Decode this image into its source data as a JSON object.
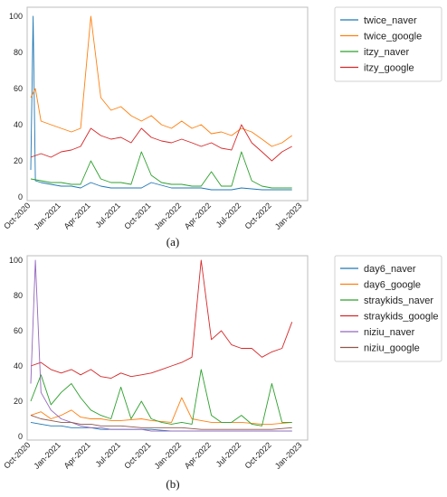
{
  "chart_data": [
    {
      "type": "line",
      "caption": "(a)",
      "x_ticks": [
        "Oct-2020",
        "Jan-2021",
        "Apr-2021",
        "Jul-2021",
        "Oct-2021",
        "Jan-2022",
        "Apr-2022",
        "Jul-2022",
        "Oct-2022",
        "Jan-2023"
      ],
      "y_ticks": [
        0,
        20,
        40,
        60,
        80,
        100
      ],
      "ylim": [
        0,
        100
      ],
      "xlim": [
        "2020-10-01",
        "2023-01-01"
      ],
      "grid": false,
      "legend_position": "outside-right",
      "series": [
        {
          "name": "twice_naver",
          "color": "#1f77b4",
          "x": [
            "2020-10-01",
            "2020-10-08",
            "2020-10-15",
            "2020-11-01",
            "2020-12-01",
            "2021-01-01",
            "2021-02-01",
            "2021-03-01",
            "2021-04-01",
            "2021-05-01",
            "2021-06-01",
            "2021-07-01",
            "2021-09-01",
            "2021-10-01",
            "2021-12-01",
            "2022-01-01",
            "2022-03-01",
            "2022-04-01",
            "2022-06-01",
            "2022-07-01",
            "2022-09-01",
            "2022-10-01",
            "2022-12-01"
          ],
          "values": [
            15,
            100,
            9,
            8,
            7,
            6,
            6,
            5,
            8,
            6,
            5,
            5,
            5,
            8,
            5,
            5,
            5,
            4,
            4,
            5,
            4,
            4,
            4
          ]
        },
        {
          "name": "twice_google",
          "color": "#ff7f0e",
          "x": [
            "2020-10-01",
            "2020-10-15",
            "2020-11-01",
            "2020-12-01",
            "2021-01-01",
            "2021-02-01",
            "2021-03-01",
            "2021-04-01",
            "2021-05-01",
            "2021-06-01",
            "2021-07-01",
            "2021-08-01",
            "2021-09-01",
            "2021-10-01",
            "2021-11-01",
            "2021-12-01",
            "2022-01-01",
            "2022-02-01",
            "2022-03-01",
            "2022-04-01",
            "2022-05-01",
            "2022-06-01",
            "2022-07-01",
            "2022-08-01",
            "2022-09-01",
            "2022-10-01",
            "2022-11-01",
            "2022-12-01"
          ],
          "values": [
            55,
            60,
            42,
            40,
            38,
            36,
            38,
            100,
            55,
            48,
            50,
            45,
            42,
            45,
            40,
            38,
            42,
            38,
            40,
            35,
            36,
            34,
            38,
            36,
            32,
            28,
            30,
            34
          ]
        },
        {
          "name": "itzy_naver",
          "color": "#2ca02c",
          "x": [
            "2020-10-01",
            "2020-11-01",
            "2020-12-01",
            "2021-01-01",
            "2021-02-01",
            "2021-03-01",
            "2021-04-01",
            "2021-05-01",
            "2021-06-01",
            "2021-07-01",
            "2021-08-01",
            "2021-09-01",
            "2021-10-01",
            "2021-11-01",
            "2021-12-01",
            "2022-01-01",
            "2022-02-01",
            "2022-03-01",
            "2022-04-01",
            "2022-05-01",
            "2022-06-01",
            "2022-07-01",
            "2022-08-01",
            "2022-09-01",
            "2022-10-01",
            "2022-11-01",
            "2022-12-01"
          ],
          "values": [
            10,
            9,
            8,
            8,
            7,
            7,
            20,
            10,
            8,
            8,
            7,
            25,
            12,
            8,
            7,
            7,
            6,
            6,
            14,
            6,
            6,
            25,
            9,
            6,
            5,
            5,
            5
          ]
        },
        {
          "name": "itzy_google",
          "color": "#d62728",
          "x": [
            "2020-10-01",
            "2020-11-01",
            "2020-12-01",
            "2021-01-01",
            "2021-02-01",
            "2021-03-01",
            "2021-04-01",
            "2021-05-01",
            "2021-06-01",
            "2021-07-01",
            "2021-08-01",
            "2021-09-01",
            "2021-10-01",
            "2021-11-01",
            "2021-12-01",
            "2022-01-01",
            "2022-02-01",
            "2022-03-01",
            "2022-04-01",
            "2022-05-01",
            "2022-06-01",
            "2022-07-01",
            "2022-08-01",
            "2022-09-01",
            "2022-10-01",
            "2022-11-01",
            "2022-12-01"
          ],
          "values": [
            22,
            24,
            22,
            25,
            26,
            28,
            38,
            34,
            32,
            33,
            30,
            38,
            33,
            31,
            30,
            32,
            30,
            28,
            30,
            27,
            26,
            40,
            30,
            25,
            20,
            25,
            28
          ]
        }
      ]
    },
    {
      "type": "line",
      "caption": "(b)",
      "x_ticks": [
        "Oct-2020",
        "Jan-2021",
        "Apr-2021",
        "Jul-2021",
        "Oct-2021",
        "Jan-2022",
        "Apr-2022",
        "Jul-2022",
        "Oct-2022",
        "Jan-2023"
      ],
      "y_ticks": [
        0,
        20,
        40,
        60,
        80,
        100
      ],
      "ylim": [
        0,
        100
      ],
      "xlim": [
        "2020-10-01",
        "2023-01-01"
      ],
      "grid": false,
      "legend_position": "outside-right",
      "series": [
        {
          "name": "day6_naver",
          "color": "#1f77b4",
          "x": [
            "2020-10-01",
            "2020-11-01",
            "2020-12-01",
            "2021-01-01",
            "2021-02-01",
            "2021-03-01",
            "2021-04-01",
            "2021-05-01",
            "2021-06-01",
            "2021-07-01",
            "2021-09-01",
            "2021-10-01",
            "2021-12-01",
            "2022-01-01",
            "2022-03-01",
            "2022-04-01",
            "2022-06-01",
            "2022-07-01",
            "2022-09-01",
            "2022-10-01",
            "2022-12-01"
          ],
          "values": [
            8,
            7,
            6,
            6,
            5,
            5,
            5,
            4,
            4,
            4,
            4,
            4,
            3,
            3,
            3,
            3,
            3,
            3,
            3,
            3,
            3
          ]
        },
        {
          "name": "day6_google",
          "color": "#ff7f0e",
          "x": [
            "2020-10-01",
            "2020-11-01",
            "2020-12-01",
            "2021-01-01",
            "2021-02-01",
            "2021-03-01",
            "2021-04-01",
            "2021-05-01",
            "2021-06-01",
            "2021-07-01",
            "2021-09-01",
            "2021-10-01",
            "2021-12-01",
            "2022-01-01",
            "2022-02-01",
            "2022-03-01",
            "2022-04-01",
            "2022-06-01",
            "2022-07-01",
            "2022-09-01",
            "2022-10-01",
            "2022-12-01"
          ],
          "values": [
            12,
            14,
            10,
            12,
            15,
            11,
            10,
            10,
            9,
            9,
            10,
            9,
            8,
            22,
            10,
            9,
            8,
            8,
            8,
            7,
            7,
            8
          ]
        },
        {
          "name": "straykids_naver",
          "color": "#2ca02c",
          "x": [
            "2020-10-01",
            "2020-11-01",
            "2020-12-01",
            "2021-01-01",
            "2021-02-01",
            "2021-03-01",
            "2021-04-01",
            "2021-05-01",
            "2021-06-01",
            "2021-07-01",
            "2021-08-01",
            "2021-09-01",
            "2021-10-01",
            "2021-11-01",
            "2021-12-01",
            "2022-01-01",
            "2022-02-01",
            "2022-03-01",
            "2022-04-01",
            "2022-05-01",
            "2022-06-01",
            "2022-07-01",
            "2022-08-01",
            "2022-09-01",
            "2022-10-01",
            "2022-11-01",
            "2022-12-01"
          ],
          "values": [
            20,
            35,
            18,
            25,
            30,
            22,
            15,
            12,
            10,
            28,
            10,
            20,
            10,
            8,
            7,
            8,
            7,
            38,
            12,
            8,
            8,
            12,
            7,
            6,
            30,
            8,
            8
          ]
        },
        {
          "name": "straykids_google",
          "color": "#d62728",
          "x": [
            "2020-10-01",
            "2020-11-01",
            "2020-12-01",
            "2021-01-01",
            "2021-02-01",
            "2021-03-01",
            "2021-04-01",
            "2021-05-01",
            "2021-06-01",
            "2021-07-01",
            "2021-08-01",
            "2021-09-01",
            "2021-10-01",
            "2021-11-01",
            "2021-12-01",
            "2022-01-01",
            "2022-02-01",
            "2022-03-01",
            "2022-04-01",
            "2022-05-01",
            "2022-06-01",
            "2022-07-01",
            "2022-08-01",
            "2022-09-01",
            "2022-10-01",
            "2022-11-01",
            "2022-12-01"
          ],
          "values": [
            40,
            42,
            38,
            36,
            38,
            35,
            38,
            34,
            33,
            36,
            34,
            35,
            36,
            38,
            40,
            42,
            45,
            100,
            55,
            60,
            52,
            50,
            50,
            45,
            48,
            50,
            65
          ]
        },
        {
          "name": "niziu_naver",
          "color": "#9467bd",
          "x": [
            "2020-10-01",
            "2020-10-15",
            "2020-11-01",
            "2020-12-01",
            "2021-01-01",
            "2021-02-01",
            "2021-03-01",
            "2021-04-01",
            "2021-05-01",
            "2021-06-01",
            "2021-07-01",
            "2021-09-01",
            "2021-10-01",
            "2021-12-01",
            "2022-01-01",
            "2022-03-01",
            "2022-04-01",
            "2022-06-01",
            "2022-07-01",
            "2022-09-01",
            "2022-10-01",
            "2022-12-01"
          ],
          "values": [
            30,
            100,
            25,
            15,
            10,
            8,
            6,
            5,
            5,
            4,
            4,
            4,
            3,
            3,
            3,
            3,
            3,
            3,
            3,
            3,
            3,
            3
          ]
        },
        {
          "name": "niziu_google",
          "color": "#8c564b",
          "x": [
            "2020-10-01",
            "2020-11-01",
            "2020-12-01",
            "2021-01-01",
            "2021-02-01",
            "2021-03-01",
            "2021-04-01",
            "2021-05-01",
            "2021-06-01",
            "2021-07-01",
            "2021-09-01",
            "2021-10-01",
            "2021-12-01",
            "2022-01-01",
            "2022-03-01",
            "2022-04-01",
            "2022-06-01",
            "2022-07-01",
            "2022-09-01",
            "2022-10-01",
            "2022-12-01"
          ],
          "values": [
            12,
            10,
            9,
            8,
            8,
            7,
            7,
            6,
            6,
            6,
            5,
            5,
            5,
            5,
            4,
            4,
            4,
            4,
            4,
            4,
            5
          ]
        }
      ]
    }
  ]
}
